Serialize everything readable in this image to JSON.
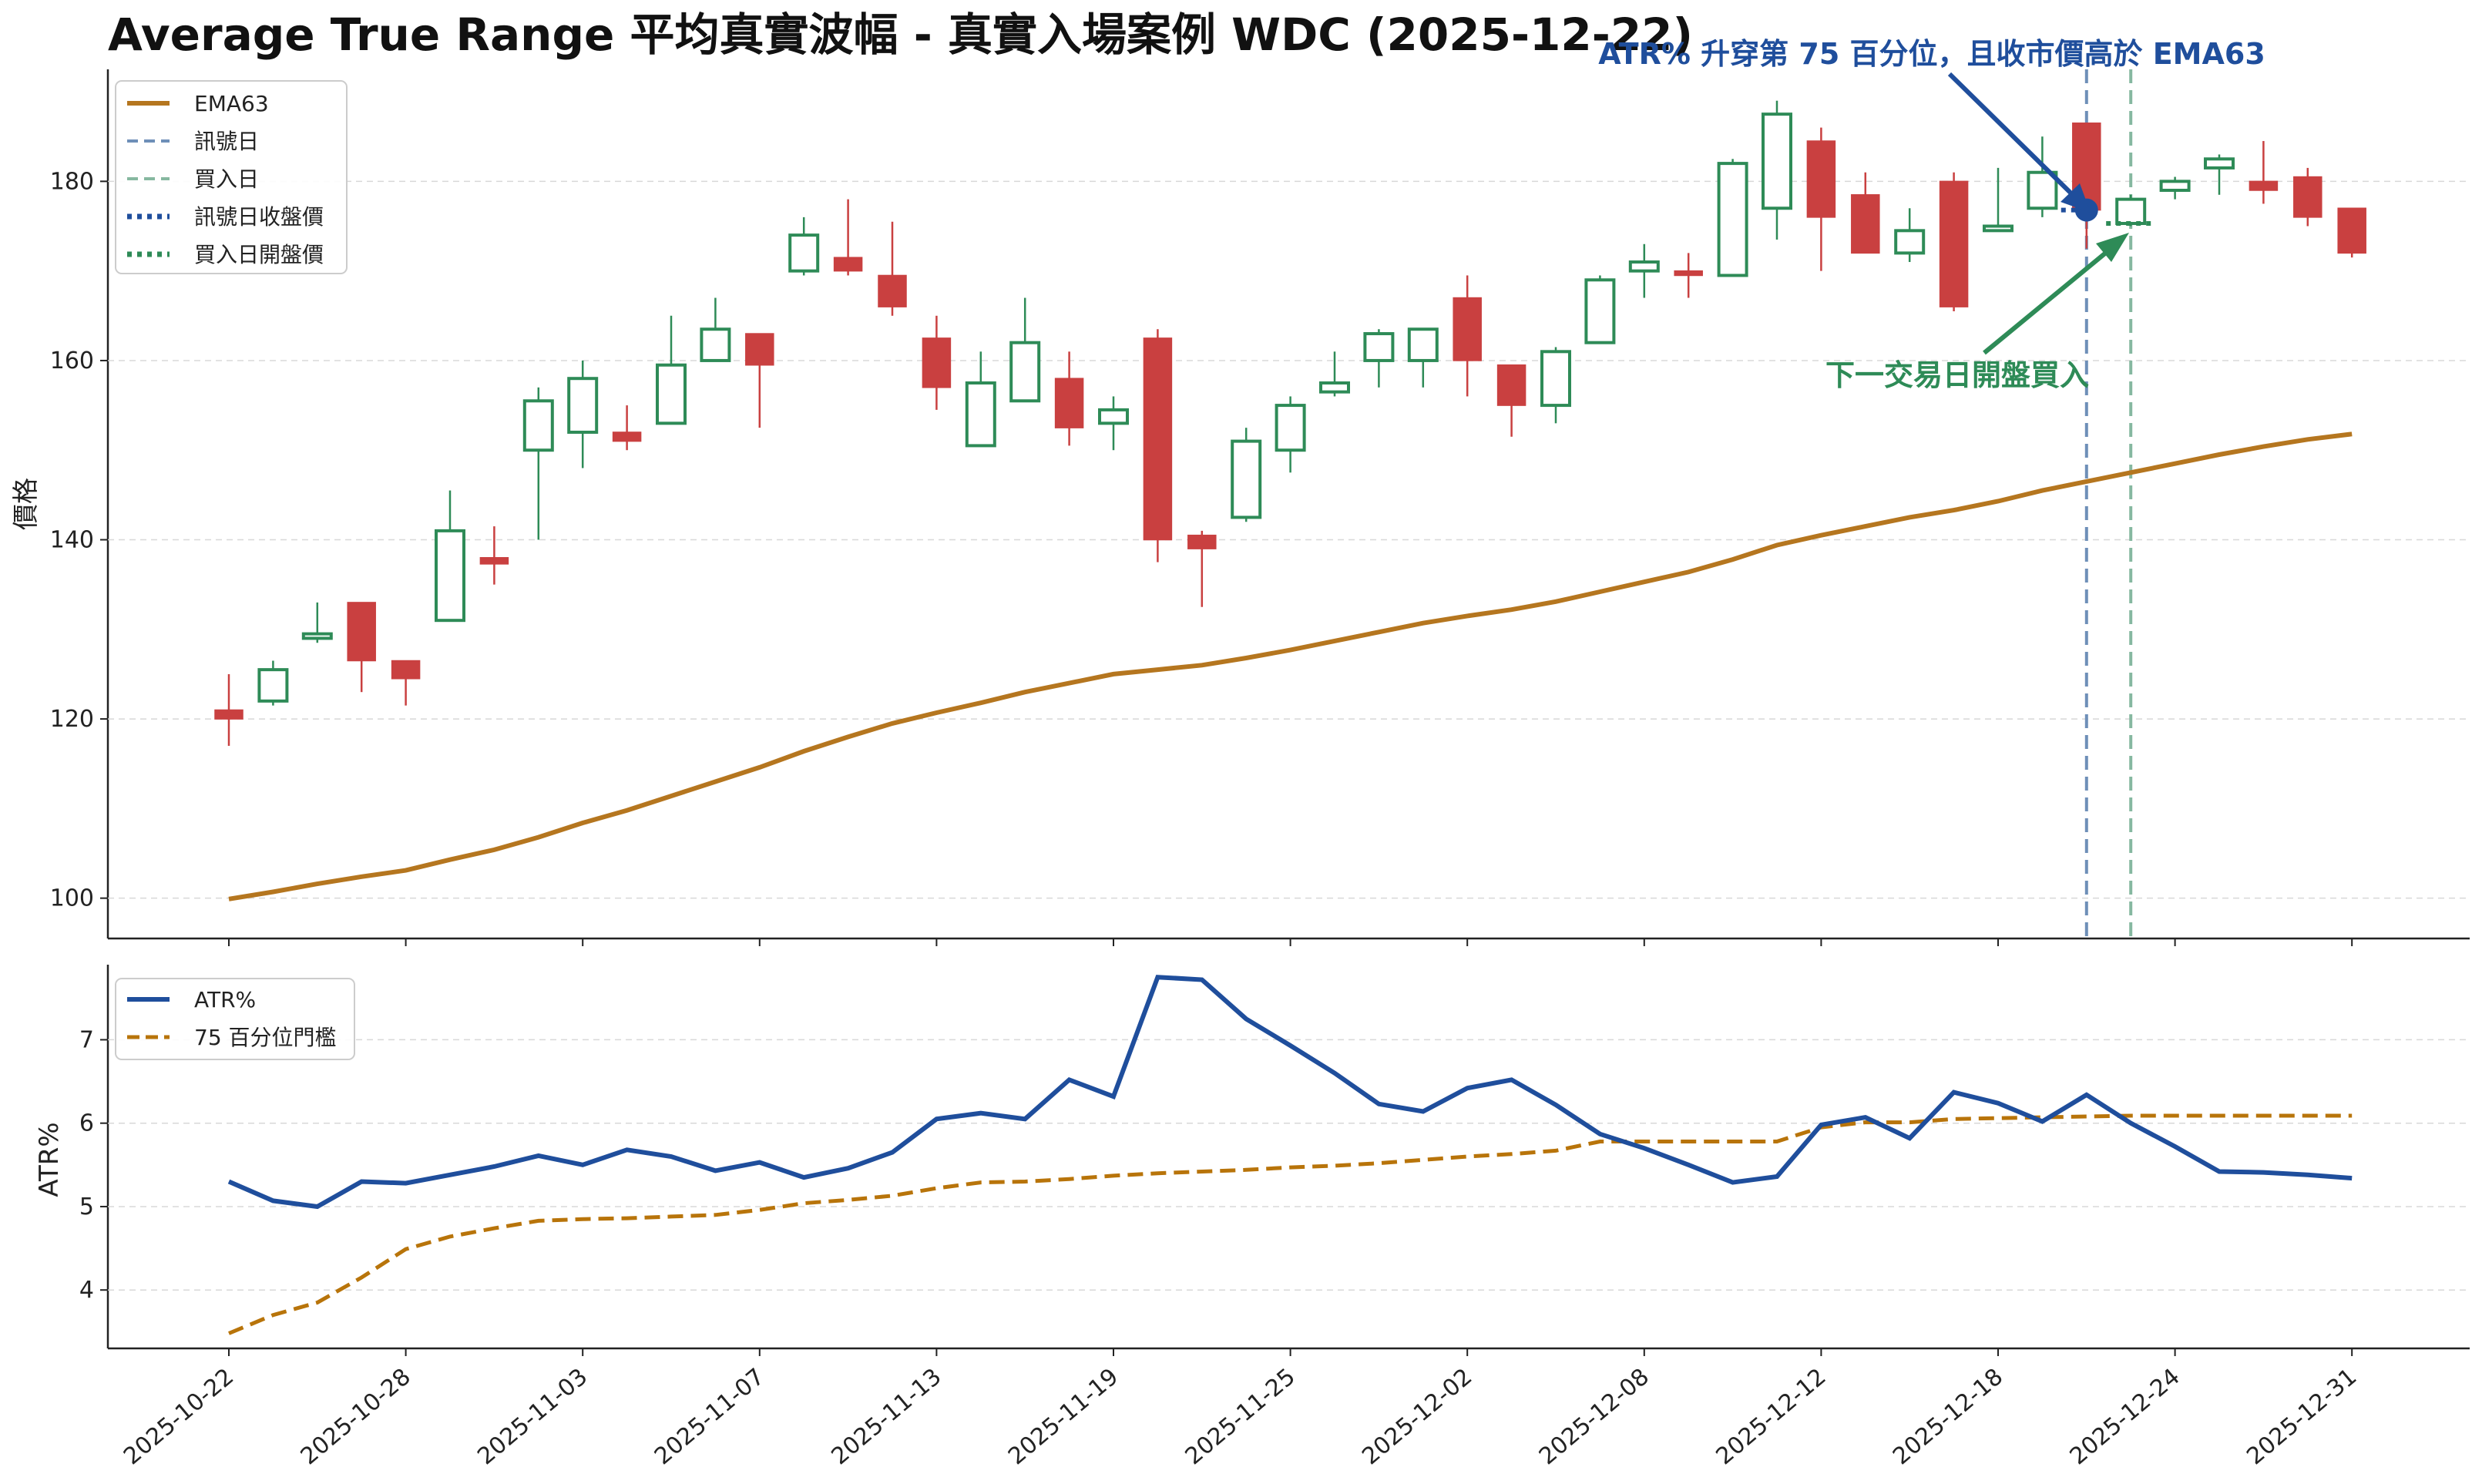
{
  "title": "Average True Range 平均真實波幅 - 真實入場案例 WDC (2025-12-22)",
  "colors": {
    "up": "#2e8b57",
    "down": "#c94040",
    "ema": "#b5761f",
    "atr": "#1f4e9c",
    "threshold": "#b8740a",
    "signal_line": "#6e8fb8",
    "buy_line": "#86b8a0"
  },
  "annotations": {
    "signal": "ATR% 升穿第 75 百分位，且收市價高於 EMA63",
    "buy": "下一交易日開盤買入"
  },
  "price_panel": {
    "ylabel": "價格",
    "yticks": [
      "100",
      "120",
      "140",
      "160",
      "180"
    ],
    "legend": [
      {
        "label": "EMA63",
        "style": "ema"
      },
      {
        "label": "訊號日",
        "style": "signal_line"
      },
      {
        "label": "買入日",
        "style": "buy_line"
      },
      {
        "label": "訊號日收盤價",
        "style": "signal_close"
      },
      {
        "label": "買入日開盤價",
        "style": "buy_open"
      }
    ]
  },
  "atr_panel": {
    "ylabel": "ATR%",
    "yticks": [
      "4",
      "5",
      "6",
      "7"
    ],
    "legend": [
      {
        "label": "ATR%",
        "style": "atr"
      },
      {
        "label": "75 百分位門檻",
        "style": "threshold"
      }
    ]
  },
  "x_ticks": [
    {
      "label": "2025-10-22",
      "index": 0
    },
    {
      "label": "2025-10-28",
      "index": 4
    },
    {
      "label": "2025-11-03",
      "index": 8
    },
    {
      "label": "2025-11-07",
      "index": 12
    },
    {
      "label": "2025-11-13",
      "index": 16
    },
    {
      "label": "2025-11-19",
      "index": 20
    },
    {
      "label": "2025-11-25",
      "index": 24
    },
    {
      "label": "2025-12-02",
      "index": 28
    },
    {
      "label": "2025-12-08",
      "index": 32
    },
    {
      "label": "2025-12-12",
      "index": 36
    },
    {
      "label": "2025-12-18",
      "index": 40
    },
    {
      "label": "2025-12-24",
      "index": 44
    },
    {
      "label": "2025-12-31",
      "index": 48
    }
  ],
  "chart_data": [
    {
      "type": "candlestick",
      "title": "Average True Range 平均真實波幅 - 真實入場案例 WDC (2025-12-22)",
      "ylabel": "價格",
      "ylim": [
        95.5,
        192.5
      ],
      "signal_date": "2025-12-22",
      "signal_close": 176.8,
      "buy_date": "2025-12-23",
      "buy_open": 175.3,
      "candles": [
        {
          "date": "2025-10-22",
          "open": 121.0,
          "high": 125.0,
          "low": 117.0,
          "close": 120.0
        },
        {
          "date": "2025-10-23",
          "open": 122.0,
          "high": 126.5,
          "low": 121.5,
          "close": 125.5
        },
        {
          "date": "2025-10-24",
          "open": 129.0,
          "high": 133.0,
          "low": 128.5,
          "close": 129.5
        },
        {
          "date": "2025-10-27",
          "open": 133.0,
          "high": 133.0,
          "low": 123.0,
          "close": 126.5
        },
        {
          "date": "2025-10-28",
          "open": 126.5,
          "high": 126.5,
          "low": 121.5,
          "close": 124.5
        },
        {
          "date": "2025-10-29",
          "open": 131.0,
          "high": 145.5,
          "low": 131.0,
          "close": 141.0
        },
        {
          "date": "2025-10-30",
          "open": 138.0,
          "high": 141.5,
          "low": 135.0,
          "close": 137.3
        },
        {
          "date": "2025-10-31",
          "open": 150.0,
          "high": 157.0,
          "low": 140.0,
          "close": 155.5
        },
        {
          "date": "2025-11-03",
          "open": 152.0,
          "high": 160.0,
          "low": 148.0,
          "close": 158.0
        },
        {
          "date": "2025-11-04",
          "open": 152.0,
          "high": 155.0,
          "low": 150.0,
          "close": 151.0
        },
        {
          "date": "2025-11-05",
          "open": 153.0,
          "high": 165.0,
          "low": 153.0,
          "close": 159.5
        },
        {
          "date": "2025-11-06",
          "open": 160.0,
          "high": 167.0,
          "low": 160.0,
          "close": 163.5
        },
        {
          "date": "2025-11-07",
          "open": 163.0,
          "high": 163.0,
          "low": 152.5,
          "close": 159.5
        },
        {
          "date": "2025-11-10",
          "open": 170.0,
          "high": 176.0,
          "low": 169.5,
          "close": 174.0
        },
        {
          "date": "2025-11-11",
          "open": 171.5,
          "high": 178.0,
          "low": 169.5,
          "close": 170.0
        },
        {
          "date": "2025-11-12",
          "open": 169.5,
          "high": 175.5,
          "low": 165.0,
          "close": 166.0
        },
        {
          "date": "2025-11-13",
          "open": 162.5,
          "high": 165.0,
          "low": 154.5,
          "close": 157.0
        },
        {
          "date": "2025-11-14",
          "open": 150.5,
          "high": 161.0,
          "low": 150.5,
          "close": 157.5
        },
        {
          "date": "2025-11-17",
          "open": 155.5,
          "high": 167.0,
          "low": 155.5,
          "close": 162.0
        },
        {
          "date": "2025-11-18",
          "open": 158.0,
          "high": 161.0,
          "low": 150.5,
          "close": 152.5
        },
        {
          "date": "2025-11-19",
          "open": 153.0,
          "high": 156.0,
          "low": 150.0,
          "close": 154.5
        },
        {
          "date": "2025-11-20",
          "open": 162.5,
          "high": 163.5,
          "low": 137.5,
          "close": 140.0
        },
        {
          "date": "2025-11-21",
          "open": 140.5,
          "high": 141.0,
          "low": 132.5,
          "close": 139.0
        },
        {
          "date": "2025-11-24",
          "open": 142.5,
          "high": 152.5,
          "low": 142.0,
          "close": 151.0
        },
        {
          "date": "2025-11-25",
          "open": 150.0,
          "high": 156.0,
          "low": 147.5,
          "close": 155.0
        },
        {
          "date": "2025-11-26",
          "open": 156.5,
          "high": 161.0,
          "low": 156.0,
          "close": 157.5
        },
        {
          "date": "2025-11-28",
          "open": 160.0,
          "high": 163.5,
          "low": 157.0,
          "close": 163.0
        },
        {
          "date": "2025-12-01",
          "open": 160.0,
          "high": 163.5,
          "low": 157.0,
          "close": 163.5
        },
        {
          "date": "2025-12-02",
          "open": 167.0,
          "high": 169.5,
          "low": 156.0,
          "close": 160.0
        },
        {
          "date": "2025-12-03",
          "open": 159.5,
          "high": 159.5,
          "low": 151.5,
          "close": 155.0
        },
        {
          "date": "2025-12-04",
          "open": 155.0,
          "high": 161.5,
          "low": 153.0,
          "close": 161.0
        },
        {
          "date": "2025-12-05",
          "open": 162.0,
          "high": 169.5,
          "low": 162.0,
          "close": 169.0
        },
        {
          "date": "2025-12-08",
          "open": 170.0,
          "high": 173.0,
          "low": 167.0,
          "close": 171.0
        },
        {
          "date": "2025-12-09",
          "open": 170.0,
          "high": 172.0,
          "low": 167.0,
          "close": 169.5
        },
        {
          "date": "2025-12-10",
          "open": 169.5,
          "high": 182.5,
          "low": 169.5,
          "close": 182.0
        },
        {
          "date": "2025-12-11",
          "open": 177.0,
          "high": 189.0,
          "low": 173.5,
          "close": 187.5
        },
        {
          "date": "2025-12-12",
          "open": 184.5,
          "high": 186.0,
          "low": 170.0,
          "close": 176.0
        },
        {
          "date": "2025-12-15",
          "open": 178.5,
          "high": 181.0,
          "low": 172.0,
          "close": 172.0
        },
        {
          "date": "2025-12-16",
          "open": 172.0,
          "high": 177.0,
          "low": 171.0,
          "close": 174.5
        },
        {
          "date": "2025-12-17",
          "open": 180.0,
          "high": 181.0,
          "low": 165.5,
          "close": 166.0
        },
        {
          "date": "2025-12-18",
          "open": 174.5,
          "high": 181.5,
          "low": 174.5,
          "close": 175.0
        },
        {
          "date": "2025-12-19",
          "open": 177.0,
          "high": 185.0,
          "low": 176.0,
          "close": 181.0
        },
        {
          "date": "2025-12-22",
          "open": 186.5,
          "high": 186.5,
          "low": 172.5,
          "close": 176.8
        },
        {
          "date": "2025-12-23",
          "open": 175.3,
          "high": 178.5,
          "low": 175.0,
          "close": 178.0
        },
        {
          "date": "2025-12-24",
          "open": 179.0,
          "high": 180.5,
          "low": 178.0,
          "close": 180.0
        },
        {
          "date": "2025-12-26",
          "open": 181.5,
          "high": 183.0,
          "low": 178.5,
          "close": 182.5
        },
        {
          "date": "2025-12-29",
          "open": 180.0,
          "high": 184.5,
          "low": 177.5,
          "close": 179.0
        },
        {
          "date": "2025-12-30",
          "open": 180.5,
          "high": 181.5,
          "low": 175.0,
          "close": 176.0
        },
        {
          "date": "2025-12-31",
          "open": 177.0,
          "high": 177.0,
          "low": 171.5,
          "close": 172.0
        }
      ],
      "series": [
        {
          "name": "EMA63",
          "values": [
            99.9,
            100.7,
            101.6,
            102.4,
            103.1,
            104.3,
            105.4,
            106.8,
            108.4,
            109.8,
            111.4,
            113.0,
            114.6,
            116.4,
            118.0,
            119.5,
            120.7,
            121.8,
            123.0,
            124.0,
            125.0,
            125.5,
            126.0,
            126.8,
            127.7,
            128.7,
            129.7,
            130.7,
            131.5,
            132.2,
            133.1,
            134.2,
            135.3,
            136.4,
            137.8,
            139.4,
            140.5,
            141.5,
            142.5,
            143.3,
            144.3,
            145.5,
            146.5,
            147.5,
            148.5,
            149.5,
            150.4,
            151.2,
            151.8
          ]
        }
      ]
    },
    {
      "type": "line",
      "ylabel": "ATR%",
      "ylim": [
        3.3,
        7.9
      ],
      "series": [
        {
          "name": "ATR%",
          "values": [
            5.3,
            5.07,
            5.0,
            5.3,
            5.28,
            5.38,
            5.48,
            5.61,
            5.5,
            5.68,
            5.6,
            5.43,
            5.53,
            5.35,
            5.46,
            5.65,
            6.05,
            6.12,
            6.05,
            6.52,
            6.32,
            7.75,
            7.72,
            7.25,
            6.93,
            6.6,
            6.23,
            6.14,
            6.42,
            6.52,
            6.22,
            5.87,
            5.7,
            5.5,
            5.29,
            5.36,
            5.98,
            6.07,
            5.82,
            6.37,
            6.24,
            6.02,
            6.34,
            6.0,
            5.72,
            5.42,
            5.41,
            5.38,
            5.34
          ]
        },
        {
          "name": "75 百分位門檻",
          "values": [
            3.48,
            3.7,
            3.85,
            4.15,
            4.49,
            4.64,
            4.74,
            4.83,
            4.85,
            4.86,
            4.88,
            4.9,
            4.96,
            5.04,
            5.08,
            5.13,
            5.22,
            5.29,
            5.3,
            5.33,
            5.37,
            5.4,
            5.42,
            5.44,
            5.47,
            5.49,
            5.52,
            5.56,
            5.6,
            5.63,
            5.67,
            5.78,
            5.78,
            5.78,
            5.78,
            5.78,
            5.95,
            6.01,
            6.01,
            6.05,
            6.06,
            6.07,
            6.08,
            6.09,
            6.09,
            6.09,
            6.09,
            6.09,
            6.09
          ]
        }
      ]
    }
  ]
}
